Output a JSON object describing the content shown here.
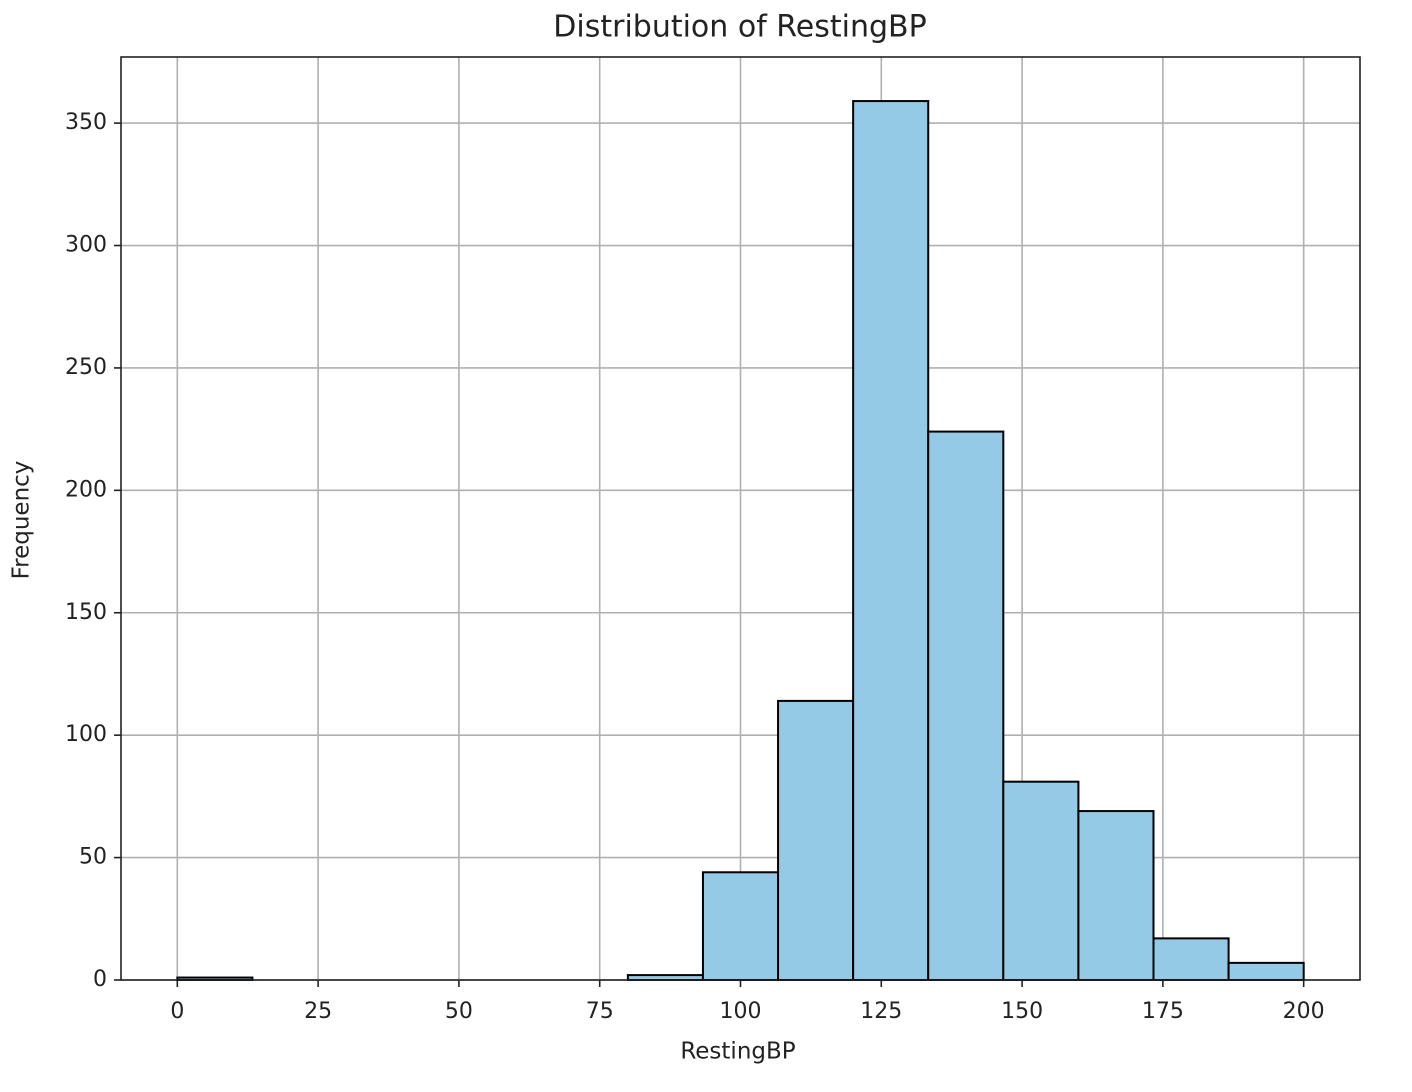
{
  "chart_data": {
    "type": "histogram",
    "title": "Distribution of RestingBP",
    "x_label": "RestingBP",
    "y_label": "Frequency",
    "bins": [
      0,
      13.333,
      26.667,
      40,
      53.333,
      66.667,
      80,
      93.333,
      106.667,
      120,
      133.333,
      146.667,
      160,
      173.333,
      186.667,
      200
    ],
    "values": [
      1,
      0,
      0,
      0,
      0,
      0,
      2,
      44,
      114,
      359,
      224,
      81,
      69,
      17,
      7
    ],
    "color": "#95cae7",
    "edgecolor": "#000000",
    "xlim": [
      -10,
      210
    ],
    "xticks": [
      0,
      25,
      50,
      75,
      100,
      125,
      150,
      175,
      200
    ],
    "ylim": [
      0,
      377
    ],
    "yticks": [
      0,
      50,
      100,
      150,
      200,
      250,
      300,
      350
    ],
    "grid": true
  }
}
